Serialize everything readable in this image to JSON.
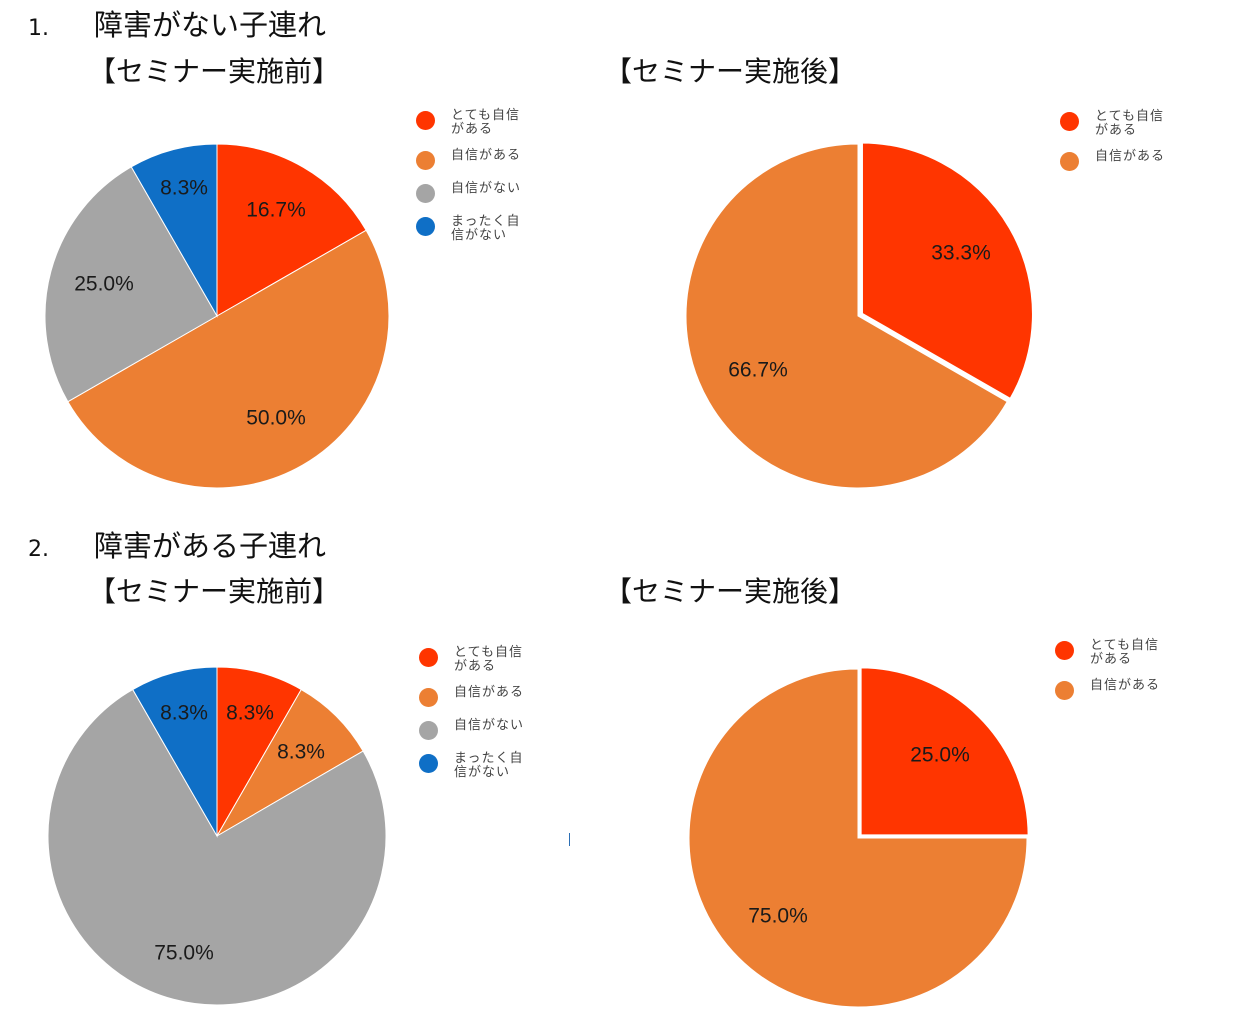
{
  "sections": [
    {
      "number": "1.",
      "title": "障害がない子連れ",
      "before_label": "【セミナー実施前】",
      "after_label": "【セミナー実施後】"
    },
    {
      "number": "2.",
      "title": "障害がある子連れ",
      "before_label": "【セミナー実施前】",
      "after_label": "【セミナー実施後】"
    }
  ],
  "colors": {
    "very_confident": "#ff3500",
    "confident": "#ec7f33",
    "not_confident": "#a5a5a5",
    "not_at_all": "#0f6fc6"
  },
  "chart_data": [
    {
      "type": "pie",
      "title": "【セミナー実施前】",
      "categories": [
        "とても自信がある",
        "自信がある",
        "自信がない",
        "まったく自信がない"
      ],
      "values": [
        16.7,
        50.0,
        25.0,
        8.3
      ],
      "labels": [
        "16.7%",
        "50.0%",
        "25.0%",
        "8.3%"
      ],
      "colors": [
        "#ff3500",
        "#ec7f33",
        "#a5a5a5",
        "#0f6fc6"
      ],
      "legend": "right"
    },
    {
      "type": "pie",
      "title": "【セミナー実施後】",
      "categories": [
        "とても自信がある",
        "自信がある"
      ],
      "values": [
        33.3,
        66.7
      ],
      "labels": [
        "33.3%",
        "66.7%"
      ],
      "colors": [
        "#ff3500",
        "#ec7f33"
      ],
      "legend": "right"
    },
    {
      "type": "pie",
      "title": "【セミナー実施前】",
      "categories": [
        "とても自信がある",
        "自信がある",
        "自信がない",
        "まったく自信がない"
      ],
      "values": [
        8.3,
        8.3,
        75.0,
        8.3
      ],
      "labels": [
        "8.3%",
        "8.3%",
        "75.0%",
        "8.3%"
      ],
      "colors": [
        "#ff3500",
        "#ec7f33",
        "#a5a5a5",
        "#0f6fc6"
      ],
      "legend": "right"
    },
    {
      "type": "pie",
      "title": "【セミナー実施後】",
      "categories": [
        "とても自信がある",
        "自信がある"
      ],
      "values": [
        25.0,
        75.0
      ],
      "labels": [
        "25.0%",
        "75.0%"
      ],
      "colors": [
        "#ff3500",
        "#ec7f33"
      ],
      "legend": "right"
    }
  ]
}
